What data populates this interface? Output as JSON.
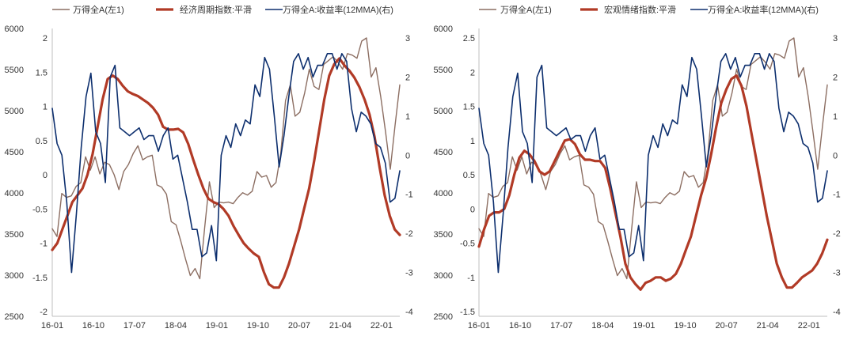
{
  "chart_data": [
    {
      "type": "line",
      "legend_position": "top",
      "grid": false,
      "x_ticks": [
        "16-01",
        "16-10",
        "17-07",
        "18-04",
        "19-01",
        "19-10",
        "20-07",
        "21-04",
        "22-01"
      ],
      "x_range": [
        0,
        76
      ],
      "y_left_ticks": [
        "6000",
        "5500",
        "5000",
        "4500",
        "4000",
        "3500",
        "3000",
        "2500"
      ],
      "y_left_range": [
        2500,
        6000
      ],
      "y_mid_ticks": [
        "2",
        "1.5",
        "1",
        "0.5",
        "0",
        "-0.5",
        "-1",
        "-1.5",
        "-2"
      ],
      "y_mid_range": [
        -2,
        2
      ],
      "y_right_ticks": [
        "3",
        "2",
        "1",
        "0",
        "-1",
        "-2",
        "-3",
        "-4"
      ],
      "y_right_range": [
        -4,
        3
      ],
      "series": [
        {
          "name": "万得全A(左1)",
          "axis": "left",
          "color": "#8c6e62",
          "width": 1.4,
          "values": [
            3560,
            3460,
            4010,
            3960,
            3980,
            4100,
            4150,
            4480,
            4310,
            4480,
            4260,
            4410,
            4380,
            4250,
            4060,
            4290,
            4380,
            4520,
            4620,
            4440,
            4480,
            4500,
            4120,
            4090,
            4000,
            3650,
            3610,
            3400,
            3170,
            2960,
            3050,
            2920,
            3560,
            4160,
            3830,
            3900,
            3890,
            3900,
            3880,
            3960,
            4020,
            3990,
            4040,
            4290,
            4220,
            4240,
            4090,
            4150,
            4530,
            5200,
            5400,
            5000,
            5050,
            5290,
            5600,
            5380,
            5340,
            5660,
            5710,
            5760,
            5690,
            5600,
            5800,
            5780,
            5740,
            5960,
            6000,
            5500,
            5620,
            5250,
            4800,
            4320,
            4880,
            5400
          ]
        },
        {
          "name": "经济周期指数:平滑",
          "axis": "mid",
          "color": "#b13a26",
          "width": 3.2,
          "values": [
            -1.1,
            -1.0,
            -0.8,
            -0.6,
            -0.4,
            -0.3,
            -0.2,
            0.0,
            0.3,
            0.7,
            1.1,
            1.4,
            1.45,
            1.4,
            1.3,
            1.22,
            1.18,
            1.15,
            1.1,
            1.05,
            0.98,
            0.88,
            0.7,
            0.66,
            0.66,
            0.67,
            0.62,
            0.45,
            0.22,
            0.0,
            -0.2,
            -0.35,
            -0.4,
            -0.43,
            -0.5,
            -0.6,
            -0.75,
            -0.88,
            -1.0,
            -1.08,
            -1.15,
            -1.2,
            -1.42,
            -1.6,
            -1.65,
            -1.65,
            -1.5,
            -1.3,
            -1.05,
            -0.8,
            -0.5,
            -0.2,
            0.2,
            0.65,
            1.1,
            1.45,
            1.62,
            1.7,
            1.6,
            1.52,
            1.42,
            1.28,
            1.1,
            0.88,
            0.55,
            0.1,
            -0.3,
            -0.6,
            -0.8,
            -0.88
          ]
        },
        {
          "name": "万得全A:收益率(12MMA)(右)",
          "axis": "right",
          "color": "#0d2f6e",
          "width": 1.6,
          "values": [
            1.2,
            0.3,
            0.0,
            -1.2,
            -3.0,
            -1.5,
            0.2,
            1.5,
            2.1,
            0.6,
            0.3,
            -0.7,
            2.0,
            2.3,
            0.7,
            0.6,
            0.5,
            0.6,
            0.7,
            0.4,
            0.5,
            0.5,
            0.1,
            0.5,
            0.7,
            -0.1,
            0.0,
            -0.6,
            -1.2,
            -1.9,
            -1.9,
            -2.6,
            -2.5,
            -1.8,
            -2.7,
            0.0,
            0.5,
            0.2,
            0.8,
            0.5,
            0.9,
            0.8,
            1.8,
            1.5,
            2.5,
            2.2,
            1.0,
            -0.3,
            0.5,
            1.5,
            2.4,
            2.6,
            2.2,
            2.5,
            2.0,
            2.3,
            2.3,
            2.6,
            2.6,
            2.2,
            2.6,
            2.4,
            1.2,
            0.6,
            1.1,
            1.0,
            0.8,
            0.3,
            0.2,
            -0.2,
            -1.2,
            -1.1,
            -0.4
          ]
        }
      ]
    },
    {
      "type": "line",
      "legend_position": "top",
      "grid": false,
      "x_ticks": [
        "16-01",
        "16-10",
        "17-07",
        "18-04",
        "19-01",
        "19-10",
        "20-07",
        "21-04",
        "22-01"
      ],
      "x_range": [
        0,
        76
      ],
      "y_left_ticks": [
        "6000",
        "5500",
        "5000",
        "4500",
        "4000",
        "3500",
        "3000",
        "2500"
      ],
      "y_left_range": [
        2500,
        6000
      ],
      "y_mid_ticks": [
        "2.5",
        "2",
        "1.5",
        "1",
        "0.5",
        "0",
        "-0.5",
        "-1",
        "-1.5"
      ],
      "y_mid_range": [
        -1.5,
        2.5
      ],
      "y_right_ticks": [
        "3",
        "2",
        "1",
        "0",
        "-1",
        "-2",
        "-3",
        "-4"
      ],
      "y_right_range": [
        -4,
        3
      ],
      "series": [
        {
          "name": "万得全A(左1)",
          "axis": "left",
          "color": "#8c6e62",
          "width": 1.4,
          "values": [
            3560,
            3460,
            4010,
            3960,
            3980,
            4100,
            4150,
            4480,
            4310,
            4480,
            4260,
            4410,
            4380,
            4250,
            4060,
            4290,
            4380,
            4520,
            4620,
            4440,
            4480,
            4500,
            4120,
            4090,
            4000,
            3650,
            3610,
            3400,
            3170,
            2960,
            3050,
            2920,
            3560,
            4160,
            3830,
            3900,
            3890,
            3900,
            3880,
            3960,
            4020,
            3990,
            4040,
            4290,
            4220,
            4240,
            4090,
            4150,
            4530,
            5200,
            5400,
            5000,
            5050,
            5290,
            5600,
            5380,
            5340,
            5660,
            5710,
            5760,
            5690,
            5600,
            5800,
            5780,
            5740,
            5960,
            6000,
            5500,
            5620,
            5250,
            4800,
            4320,
            4880,
            5400
          ]
        },
        {
          "name": "宏观情绪指数:平滑",
          "axis": "mid",
          "color": "#b13a26",
          "width": 3.2,
          "values": [
            -0.55,
            -0.3,
            -0.1,
            -0.05,
            -0.05,
            0.0,
            0.2,
            0.5,
            0.75,
            0.85,
            0.8,
            0.7,
            0.55,
            0.5,
            0.55,
            0.7,
            0.85,
            1.0,
            1.02,
            0.95,
            0.8,
            0.72,
            0.72,
            0.7,
            0.7,
            0.6,
            0.3,
            -0.05,
            -0.4,
            -0.8,
            -1.0,
            -1.1,
            -1.18,
            -1.08,
            -1.05,
            -1.0,
            -1.0,
            -1.05,
            -1.02,
            -0.95,
            -0.8,
            -0.6,
            -0.4,
            -0.1,
            0.2,
            0.45,
            0.8,
            1.2,
            1.55,
            1.75,
            1.9,
            1.95,
            1.8,
            1.5,
            1.1,
            0.7,
            0.3,
            -0.1,
            -0.45,
            -0.8,
            -1.0,
            -1.15,
            -1.15,
            -1.08,
            -1.0,
            -0.95,
            -0.9,
            -0.8,
            -0.65,
            -0.45
          ]
        },
        {
          "name": "万得全A:收益率(12MMA)(右)",
          "axis": "right",
          "color": "#0d2f6e",
          "width": 1.6,
          "values": [
            1.2,
            0.3,
            0.0,
            -1.2,
            -3.0,
            -1.5,
            0.2,
            1.5,
            2.1,
            0.6,
            0.3,
            -0.7,
            2.0,
            2.3,
            0.7,
            0.6,
            0.5,
            0.6,
            0.7,
            0.4,
            0.5,
            0.5,
            0.1,
            0.5,
            0.7,
            -0.1,
            0.0,
            -0.6,
            -1.2,
            -1.9,
            -1.9,
            -2.6,
            -2.5,
            -1.8,
            -2.7,
            0.0,
            0.5,
            0.2,
            0.8,
            0.5,
            0.9,
            0.8,
            1.8,
            1.5,
            2.5,
            2.2,
            1.0,
            -0.3,
            0.5,
            1.5,
            2.4,
            2.6,
            2.2,
            2.5,
            2.0,
            2.3,
            2.3,
            2.6,
            2.6,
            2.2,
            2.6,
            2.4,
            1.2,
            0.6,
            1.1,
            1.0,
            0.8,
            0.3,
            0.2,
            -0.2,
            -1.2,
            -1.1,
            -0.4
          ]
        }
      ]
    }
  ]
}
